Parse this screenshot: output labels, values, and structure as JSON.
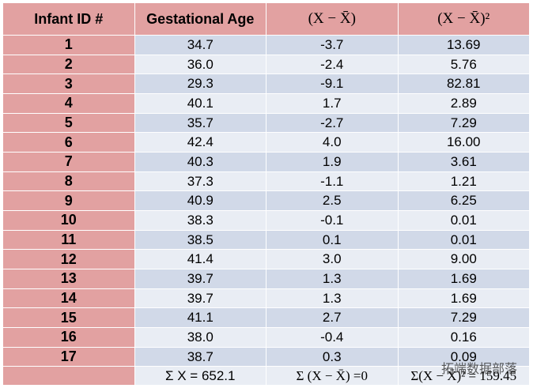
{
  "table": {
    "header": [
      "Infant ID #",
      "Gestational Age",
      "(X − X̄)",
      "(X − X̄)²"
    ],
    "rows": [
      [
        "1",
        "34.7",
        "-3.7",
        "13.69"
      ],
      [
        "2",
        "36.0",
        "-2.4",
        "5.76"
      ],
      [
        "3",
        "29.3",
        "-9.1",
        "82.81"
      ],
      [
        "4",
        "40.1",
        "1.7",
        "2.89"
      ],
      [
        "5",
        "35.7",
        "-2.7",
        "7.29"
      ],
      [
        "6",
        "42.4",
        "4.0",
        "16.00"
      ],
      [
        "7",
        "40.3",
        "1.9",
        "3.61"
      ],
      [
        "8",
        "37.3",
        "-1.1",
        "1.21"
      ],
      [
        "9",
        "40.9",
        "2.5",
        "6.25"
      ],
      [
        "10",
        "38.3",
        "-0.1",
        "0.01"
      ],
      [
        "11",
        "38.5",
        "0.1",
        "0.01"
      ],
      [
        "12",
        "41.4",
        "3.0",
        "9.00"
      ],
      [
        "13",
        "39.7",
        "1.3",
        "1.69"
      ],
      [
        "14",
        "39.7",
        "1.3",
        "1.69"
      ],
      [
        "15",
        "41.1",
        "2.7",
        "7.29"
      ],
      [
        "16",
        "38.0",
        "-0.4",
        "0.16"
      ],
      [
        "17",
        "38.7",
        "0.3",
        "0.09"
      ]
    ],
    "footer": [
      "Σ X = 652.1",
      "Σ (X − X̄) =0",
      "Σ(X − X̄)² = 159.45"
    ]
  },
  "watermark": "拓端数据部落"
}
